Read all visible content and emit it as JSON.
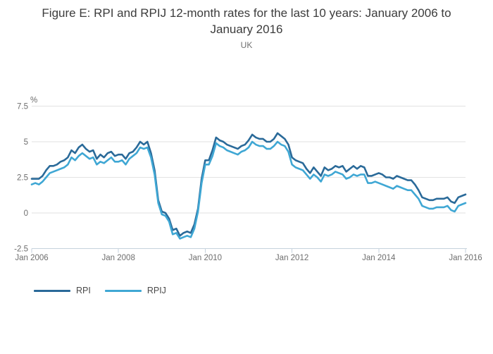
{
  "header": {
    "title": "Figure E: RPI and RPIJ 12-month rates for the last 10 years: January 2006 to January 2016",
    "subtitle": "UK"
  },
  "chart_data": {
    "type": "line",
    "title": "Figure E: RPI and RPIJ 12-month rates for the last 10 years: January 2006 to January 2016",
    "subtitle": "UK",
    "y_axis_unit_label": "%",
    "y_tick_labels": [
      "7.5",
      "5",
      "2.5",
      "0",
      "-2.5"
    ],
    "y_tick_values": [
      7.5,
      5,
      2.5,
      0,
      -2.5
    ],
    "ylim": [
      -2.5,
      7.5
    ],
    "x_tick_labels": [
      "Jan 2006",
      "Jan 2008",
      "Jan 2010",
      "Jan 2012",
      "Jan 2014",
      "Jan 2016"
    ],
    "x_range": "monthly from January 2006 to January 2016",
    "grid": "horizontal",
    "legend_position": "bottom-left",
    "grid_color": "#e2e2e2",
    "axis_color": "#c6d2dc",
    "tick_label_color": "#6e6e6e",
    "series": [
      {
        "name": "RPI",
        "color": "#2a6a99",
        "values": [
          2.4,
          2.4,
          2.4,
          2.6,
          3.0,
          3.3,
          3.3,
          3.4,
          3.6,
          3.7,
          3.9,
          4.4,
          4.2,
          4.6,
          4.8,
          4.5,
          4.3,
          4.4,
          3.8,
          4.1,
          3.9,
          4.2,
          4.3,
          4.0,
          4.1,
          4.1,
          3.8,
          4.2,
          4.3,
          4.6,
          5.0,
          4.8,
          5.0,
          4.2,
          3.0,
          0.9,
          0.1,
          0.0,
          -0.4,
          -1.2,
          -1.1,
          -1.6,
          -1.4,
          -1.3,
          -1.4,
          -0.8,
          0.3,
          2.4,
          3.7,
          3.7,
          4.4,
          5.3,
          5.1,
          5.0,
          4.8,
          4.7,
          4.6,
          4.5,
          4.7,
          4.8,
          5.1,
          5.5,
          5.3,
          5.2,
          5.2,
          5.0,
          5.0,
          5.2,
          5.6,
          5.4,
          5.2,
          4.8,
          3.9,
          3.7,
          3.6,
          3.5,
          3.1,
          2.8,
          3.2,
          2.9,
          2.6,
          3.2,
          3.0,
          3.1,
          3.3,
          3.2,
          3.3,
          2.9,
          3.1,
          3.3,
          3.1,
          3.3,
          3.2,
          2.6,
          2.6,
          2.7,
          2.8,
          2.7,
          2.5,
          2.5,
          2.4,
          2.6,
          2.5,
          2.4,
          2.3,
          2.3,
          2.0,
          1.6,
          1.1,
          1.0,
          0.9,
          0.9,
          1.0,
          1.0,
          1.0,
          1.1,
          0.8,
          0.7,
          1.1,
          1.2,
          1.3
        ]
      },
      {
        "name": "RPIJ",
        "color": "#3fa7d4",
        "values": [
          2.0,
          2.1,
          2.0,
          2.2,
          2.5,
          2.8,
          2.9,
          3.0,
          3.1,
          3.2,
          3.4,
          3.9,
          3.7,
          4.0,
          4.2,
          4.0,
          3.8,
          3.9,
          3.4,
          3.6,
          3.5,
          3.7,
          3.9,
          3.6,
          3.6,
          3.7,
          3.4,
          3.8,
          4.0,
          4.2,
          4.6,
          4.5,
          4.6,
          3.9,
          2.7,
          0.7,
          -0.1,
          -0.2,
          -0.6,
          -1.5,
          -1.4,
          -1.8,
          -1.7,
          -1.6,
          -1.7,
          -1.1,
          0.1,
          2.1,
          3.4,
          3.4,
          4.0,
          4.9,
          4.7,
          4.6,
          4.4,
          4.3,
          4.2,
          4.1,
          4.3,
          4.4,
          4.6,
          5.0,
          4.8,
          4.7,
          4.7,
          4.5,
          4.5,
          4.7,
          5.0,
          4.8,
          4.7,
          4.3,
          3.4,
          3.2,
          3.1,
          3.0,
          2.7,
          2.4,
          2.7,
          2.5,
          2.2,
          2.7,
          2.6,
          2.7,
          2.9,
          2.8,
          2.7,
          2.4,
          2.5,
          2.7,
          2.6,
          2.7,
          2.7,
          2.1,
          2.1,
          2.2,
          2.1,
          2.0,
          1.9,
          1.8,
          1.7,
          1.9,
          1.8,
          1.7,
          1.6,
          1.6,
          1.3,
          1.0,
          0.5,
          0.4,
          0.3,
          0.3,
          0.4,
          0.4,
          0.4,
          0.5,
          0.2,
          0.1,
          0.5,
          0.6,
          0.7
        ]
      }
    ]
  }
}
